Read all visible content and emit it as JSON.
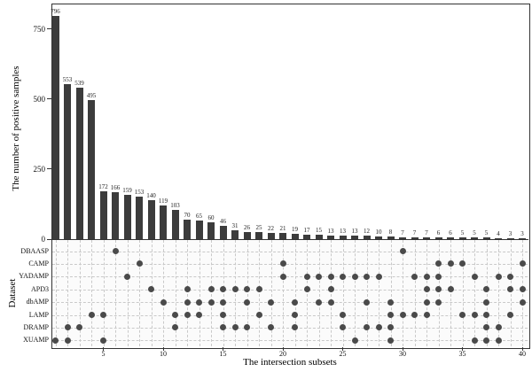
{
  "chart_data": {
    "type": "bar",
    "variant": "upset-plot",
    "title": "",
    "ylabel": "The number of positive samples",
    "xlabel": "The intersection subsets",
    "matrix_label": "Dataset",
    "y_ticks": [
      0,
      250,
      500,
      750
    ],
    "x_ticks": [
      5,
      10,
      15,
      20,
      25,
      30,
      35,
      40
    ],
    "ylim": [
      0,
      840
    ],
    "n_columns": 40,
    "datasets": [
      "DBAASP",
      "CAMP",
      "YADAMP",
      "APD3",
      "dbAMP",
      "LAMP",
      "DRAMP",
      "XUAMP"
    ],
    "values": [
      796,
      553,
      539,
      495,
      172,
      166,
      159,
      153,
      140,
      119,
      103,
      70,
      65,
      60,
      46,
      31,
      26,
      25,
      22,
      21,
      19,
      17,
      15,
      13,
      13,
      13,
      12,
      10,
      8,
      7,
      7,
      7,
      6,
      6,
      5,
      5,
      5,
      4,
      3,
      3
    ],
    "intersections": [
      {
        "size": 796,
        "sets": [
          "XUAMP"
        ]
      },
      {
        "size": 553,
        "sets": [
          "DRAMP",
          "XUAMP"
        ]
      },
      {
        "size": 539,
        "sets": [
          "DRAMP"
        ]
      },
      {
        "size": 495,
        "sets": [
          "LAMP"
        ]
      },
      {
        "size": 172,
        "sets": [
          "LAMP",
          "XUAMP"
        ]
      },
      {
        "size": 166,
        "sets": [
          "DBAASP"
        ]
      },
      {
        "size": 159,
        "sets": [
          "YADAMP"
        ]
      },
      {
        "size": 153,
        "sets": [
          "CAMP"
        ]
      },
      {
        "size": 140,
        "sets": [
          "APD3"
        ]
      },
      {
        "size": 119,
        "sets": [
          "dbAMP"
        ]
      },
      {
        "size": 103,
        "sets": [
          "LAMP",
          "DRAMP"
        ]
      },
      {
        "size": 70,
        "sets": [
          "APD3",
          "dbAMP",
          "LAMP"
        ]
      },
      {
        "size": 65,
        "sets": [
          "dbAMP",
          "LAMP"
        ]
      },
      {
        "size": 60,
        "sets": [
          "APD3",
          "dbAMP"
        ]
      },
      {
        "size": 46,
        "sets": [
          "APD3",
          "dbAMP",
          "LAMP",
          "DRAMP"
        ]
      },
      {
        "size": 31,
        "sets": [
          "APD3",
          "DRAMP"
        ]
      },
      {
        "size": 26,
        "sets": [
          "APD3",
          "dbAMP",
          "DRAMP"
        ]
      },
      {
        "size": 25,
        "sets": [
          "APD3",
          "LAMP"
        ]
      },
      {
        "size": 22,
        "sets": [
          "dbAMP",
          "DRAMP"
        ]
      },
      {
        "size": 21,
        "sets": [
          "CAMP",
          "YADAMP"
        ]
      },
      {
        "size": 19,
        "sets": [
          "dbAMP",
          "LAMP",
          "DRAMP"
        ]
      },
      {
        "size": 17,
        "sets": [
          "YADAMP",
          "APD3"
        ]
      },
      {
        "size": 15,
        "sets": [
          "YADAMP",
          "dbAMP"
        ]
      },
      {
        "size": 13,
        "sets": [
          "YADAMP",
          "APD3",
          "dbAMP"
        ]
      },
      {
        "size": 13,
        "sets": [
          "YADAMP",
          "LAMP",
          "DRAMP"
        ]
      },
      {
        "size": 13,
        "sets": [
          "YADAMP",
          "XUAMP"
        ]
      },
      {
        "size": 12,
        "sets": [
          "YADAMP",
          "dbAMP",
          "DRAMP"
        ]
      },
      {
        "size": 10,
        "sets": [
          "YADAMP",
          "DRAMP"
        ]
      },
      {
        "size": 8,
        "sets": [
          "dbAMP",
          "LAMP",
          "DRAMP",
          "XUAMP"
        ]
      },
      {
        "size": 7,
        "sets": [
          "DBAASP",
          "LAMP"
        ]
      },
      {
        "size": 7,
        "sets": [
          "YADAMP",
          "LAMP"
        ]
      },
      {
        "size": 7,
        "sets": [
          "YADAMP",
          "APD3",
          "dbAMP",
          "LAMP"
        ]
      },
      {
        "size": 6,
        "sets": [
          "CAMP",
          "YADAMP",
          "APD3",
          "dbAMP"
        ]
      },
      {
        "size": 6,
        "sets": [
          "CAMP",
          "APD3"
        ]
      },
      {
        "size": 5,
        "sets": [
          "CAMP",
          "LAMP"
        ]
      },
      {
        "size": 5,
        "sets": [
          "YADAMP",
          "LAMP",
          "XUAMP"
        ]
      },
      {
        "size": 5,
        "sets": [
          "APD3",
          "dbAMP",
          "LAMP",
          "DRAMP",
          "XUAMP"
        ]
      },
      {
        "size": 4,
        "sets": [
          "YADAMP",
          "DRAMP",
          "XUAMP"
        ]
      },
      {
        "size": 3,
        "sets": [
          "YADAMP",
          "APD3",
          "LAMP"
        ]
      },
      {
        "size": 3,
        "sets": [
          "CAMP",
          "APD3",
          "dbAMP"
        ]
      }
    ],
    "legend": "none",
    "grid": "dashed-matrix"
  },
  "colors": {
    "bar": "#3c3c3c",
    "dot": "#4a4a4a",
    "grid": "#c9c9c9",
    "axis": "#333333",
    "matrix_bg": "#fbfbfb"
  }
}
